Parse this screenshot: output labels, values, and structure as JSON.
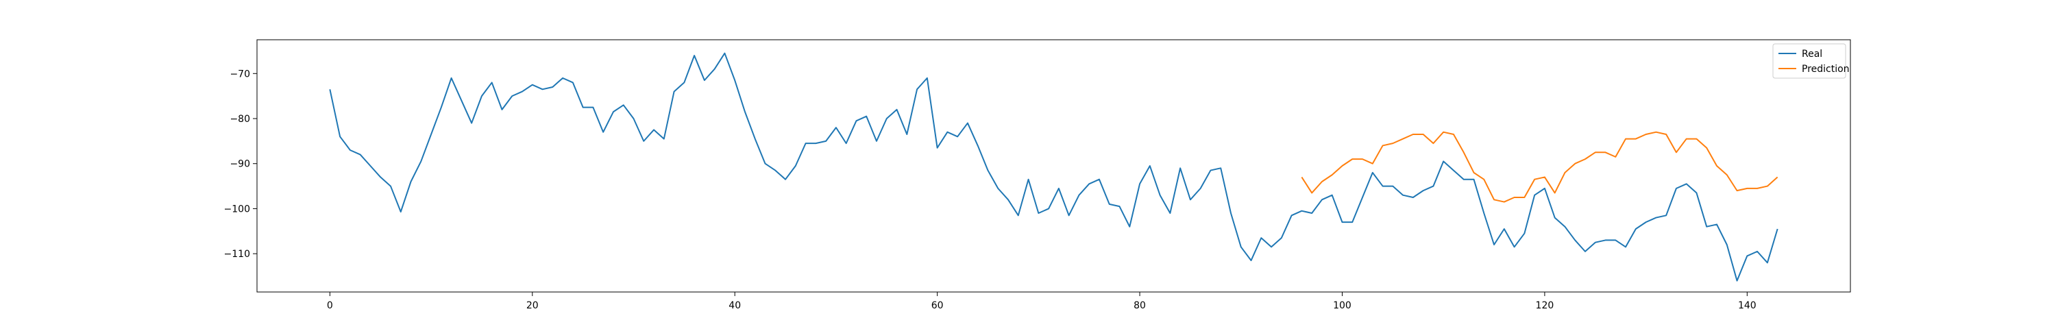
{
  "chart_data": {
    "type": "line",
    "title": "",
    "xlabel": "",
    "ylabel": "",
    "xlim": [
      -7.2,
      150.2
    ],
    "ylim": [
      -118.5,
      -62.5
    ],
    "grid": false,
    "legend_position": "top-right",
    "xticks": [
      0,
      20,
      40,
      60,
      80,
      100,
      120,
      140
    ],
    "yticks": [
      -70,
      -80,
      -90,
      -100,
      -110
    ],
    "series": [
      {
        "name": "Real",
        "color": "#1f77b4",
        "x": [
          0,
          1,
          2,
          3,
          4,
          5,
          6,
          7,
          8,
          9,
          10,
          11,
          12,
          13,
          14,
          15,
          16,
          17,
          18,
          19,
          20,
          21,
          22,
          23,
          24,
          25,
          26,
          27,
          28,
          29,
          30,
          31,
          32,
          33,
          34,
          35,
          36,
          37,
          38,
          39,
          40,
          41,
          42,
          43,
          44,
          45,
          46,
          47,
          48,
          49,
          50,
          51,
          52,
          53,
          54,
          55,
          56,
          57,
          58,
          59,
          60,
          61,
          62,
          63,
          64,
          65,
          66,
          67,
          68,
          69,
          70,
          71,
          72,
          73,
          74,
          75,
          76,
          77,
          78,
          79,
          80,
          81,
          82,
          83,
          84,
          85,
          86,
          87,
          88,
          89,
          90,
          91,
          92,
          93,
          94,
          95,
          96,
          97,
          98,
          99,
          100,
          101,
          102,
          103,
          104,
          105,
          106,
          107,
          108,
          109,
          110,
          111,
          112,
          113,
          114,
          115,
          116,
          117,
          118,
          119,
          120,
          121,
          122,
          123,
          124,
          125,
          126,
          127,
          128,
          129,
          130,
          131,
          132,
          133,
          134,
          135,
          136,
          137,
          138,
          139,
          140,
          141,
          142,
          143
        ],
        "y": [
          -73.5,
          -84,
          -87,
          -88,
          -90.5,
          -93,
          -95,
          -100.7,
          -94,
          -89.5,
          -83.5,
          -77.5,
          -71,
          -76,
          -81,
          -75,
          -72,
          -78,
          -75,
          -74,
          -72.5,
          -73.5,
          -73,
          -71,
          -72,
          -77.5,
          -77.5,
          -83,
          -78.5,
          -77,
          -80,
          -85,
          -82.5,
          -84.5,
          -74,
          -72,
          -66,
          -71.5,
          -69,
          -65.5,
          -71.5,
          -78.5,
          -84.5,
          -90,
          -91.5,
          -93.5,
          -90.5,
          -85.5,
          -85.5,
          -85,
          -82,
          -85.5,
          -80.5,
          -79.5,
          -85,
          -80,
          -78,
          -83.5,
          -73.5,
          -71,
          -86.5,
          -83,
          -84,
          -81,
          -86,
          -91.5,
          -95.5,
          -98,
          -101.5,
          -93.5,
          -101,
          -100,
          -95.5,
          -101.5,
          -97,
          -94.5,
          -93.5,
          -99,
          -99.5,
          -104,
          -94.5,
          -90.5,
          -97,
          -101,
          -91,
          -98,
          -95.5,
          -91.5,
          -91,
          -101,
          -108.5,
          -111.5,
          -106.5,
          -108.5,
          -106.5,
          -101.5,
          -100.5,
          -101,
          -98,
          -97,
          -103,
          -103,
          -97.5,
          -92,
          -95,
          -95,
          -97,
          -97.5,
          -96,
          -95,
          -89.5,
          -91.5,
          -93.5,
          -93.5,
          -101,
          -108,
          -104.5,
          -108.5,
          -105.5,
          -97,
          -95.5,
          -102,
          -104,
          -107,
          -109.5,
          -107.5,
          -107,
          -107,
          -108.5,
          -104.5,
          -103,
          -102,
          -101.5,
          -95.5,
          -94.5,
          -96.5,
          -104,
          -103.5,
          -108,
          -116,
          -110.5,
          -109.5,
          -112,
          -104.5
        ]
      },
      {
        "name": "Prediction",
        "color": "#ff7f0e",
        "x": [
          96,
          97,
          98,
          99,
          100,
          101,
          102,
          103,
          104,
          105,
          106,
          107,
          108,
          109,
          110,
          111,
          112,
          113,
          114,
          115,
          116,
          117,
          118,
          119,
          120,
          121,
          122,
          123,
          124,
          125,
          126,
          127,
          128,
          129,
          130,
          131,
          132,
          133,
          134,
          135,
          136,
          137,
          138,
          139,
          140,
          141,
          142,
          143
        ],
        "y": [
          -93,
          -96.5,
          -94,
          -92.5,
          -90.5,
          -89,
          -89,
          -90,
          -86,
          -85.5,
          -84.5,
          -83.5,
          -83.5,
          -85.5,
          -83,
          -83.5,
          -87.5,
          -92,
          -93.5,
          -98,
          -98.5,
          -97.5,
          -97.5,
          -93.5,
          -93,
          -96.5,
          -92,
          -90,
          -89,
          -87.5,
          -87.5,
          -88.5,
          -84.5,
          -84.5,
          -83.5,
          -83,
          -83.5,
          -87.5,
          -84.5,
          -84.5,
          -86.5,
          -90.5,
          -92.5,
          -96,
          -95.5,
          -95.5,
          -95,
          -93
        ]
      }
    ]
  }
}
